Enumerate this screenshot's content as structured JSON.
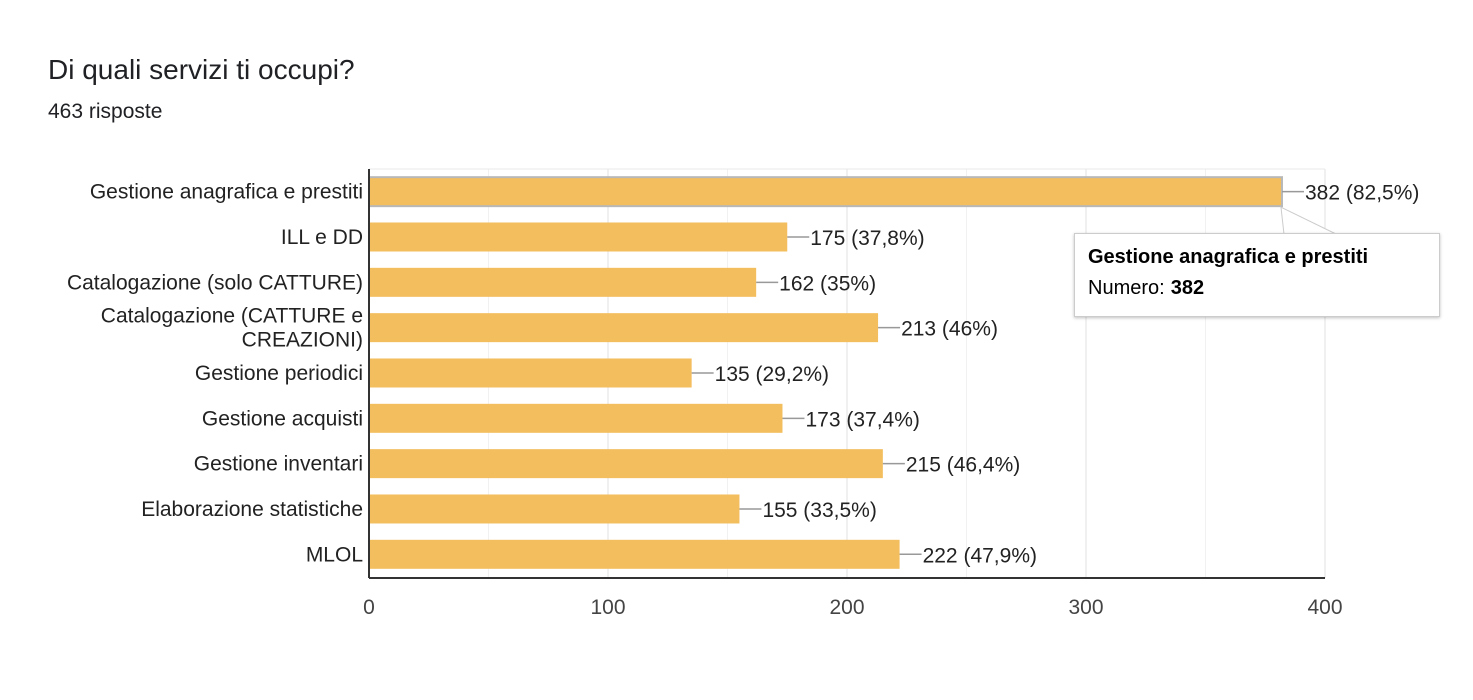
{
  "header": {
    "title": "Di quali servizi ti occupi?",
    "responses": "463 risposte"
  },
  "chart_data": {
    "type": "bar",
    "orientation": "horizontal",
    "categories": [
      [
        "Gestione anagrafica e prestiti"
      ],
      [
        "ILL e DD"
      ],
      [
        "Catalogazione (solo CATTURE)"
      ],
      [
        "Catalogazione (CATTURE e",
        "CREAZIONI)"
      ],
      [
        "Gestione periodici"
      ],
      [
        "Gestione acquisti"
      ],
      [
        "Gestione inventari"
      ],
      [
        "Elaborazione statistiche"
      ],
      [
        "MLOL"
      ]
    ],
    "values": [
      382,
      175,
      162,
      213,
      135,
      173,
      215,
      155,
      222
    ],
    "data_labels": [
      "382 (82,5%)",
      "175 (37,8%)",
      "162 (35%)",
      "213 (46%)",
      "135 (29,2%)",
      "173 (37,4%)",
      "215 (46,4%)",
      "155 (33,5%)",
      "222 (47,9%)"
    ],
    "xlim": [
      0,
      400
    ],
    "xticks": [
      0,
      100,
      200,
      300,
      400
    ],
    "grid": true,
    "bar_color": "#f3be5d",
    "highlighted_index": 0
  },
  "tooltip": {
    "title": "Gestione anagrafica e prestiti",
    "label": "Numero:",
    "value": "382"
  }
}
